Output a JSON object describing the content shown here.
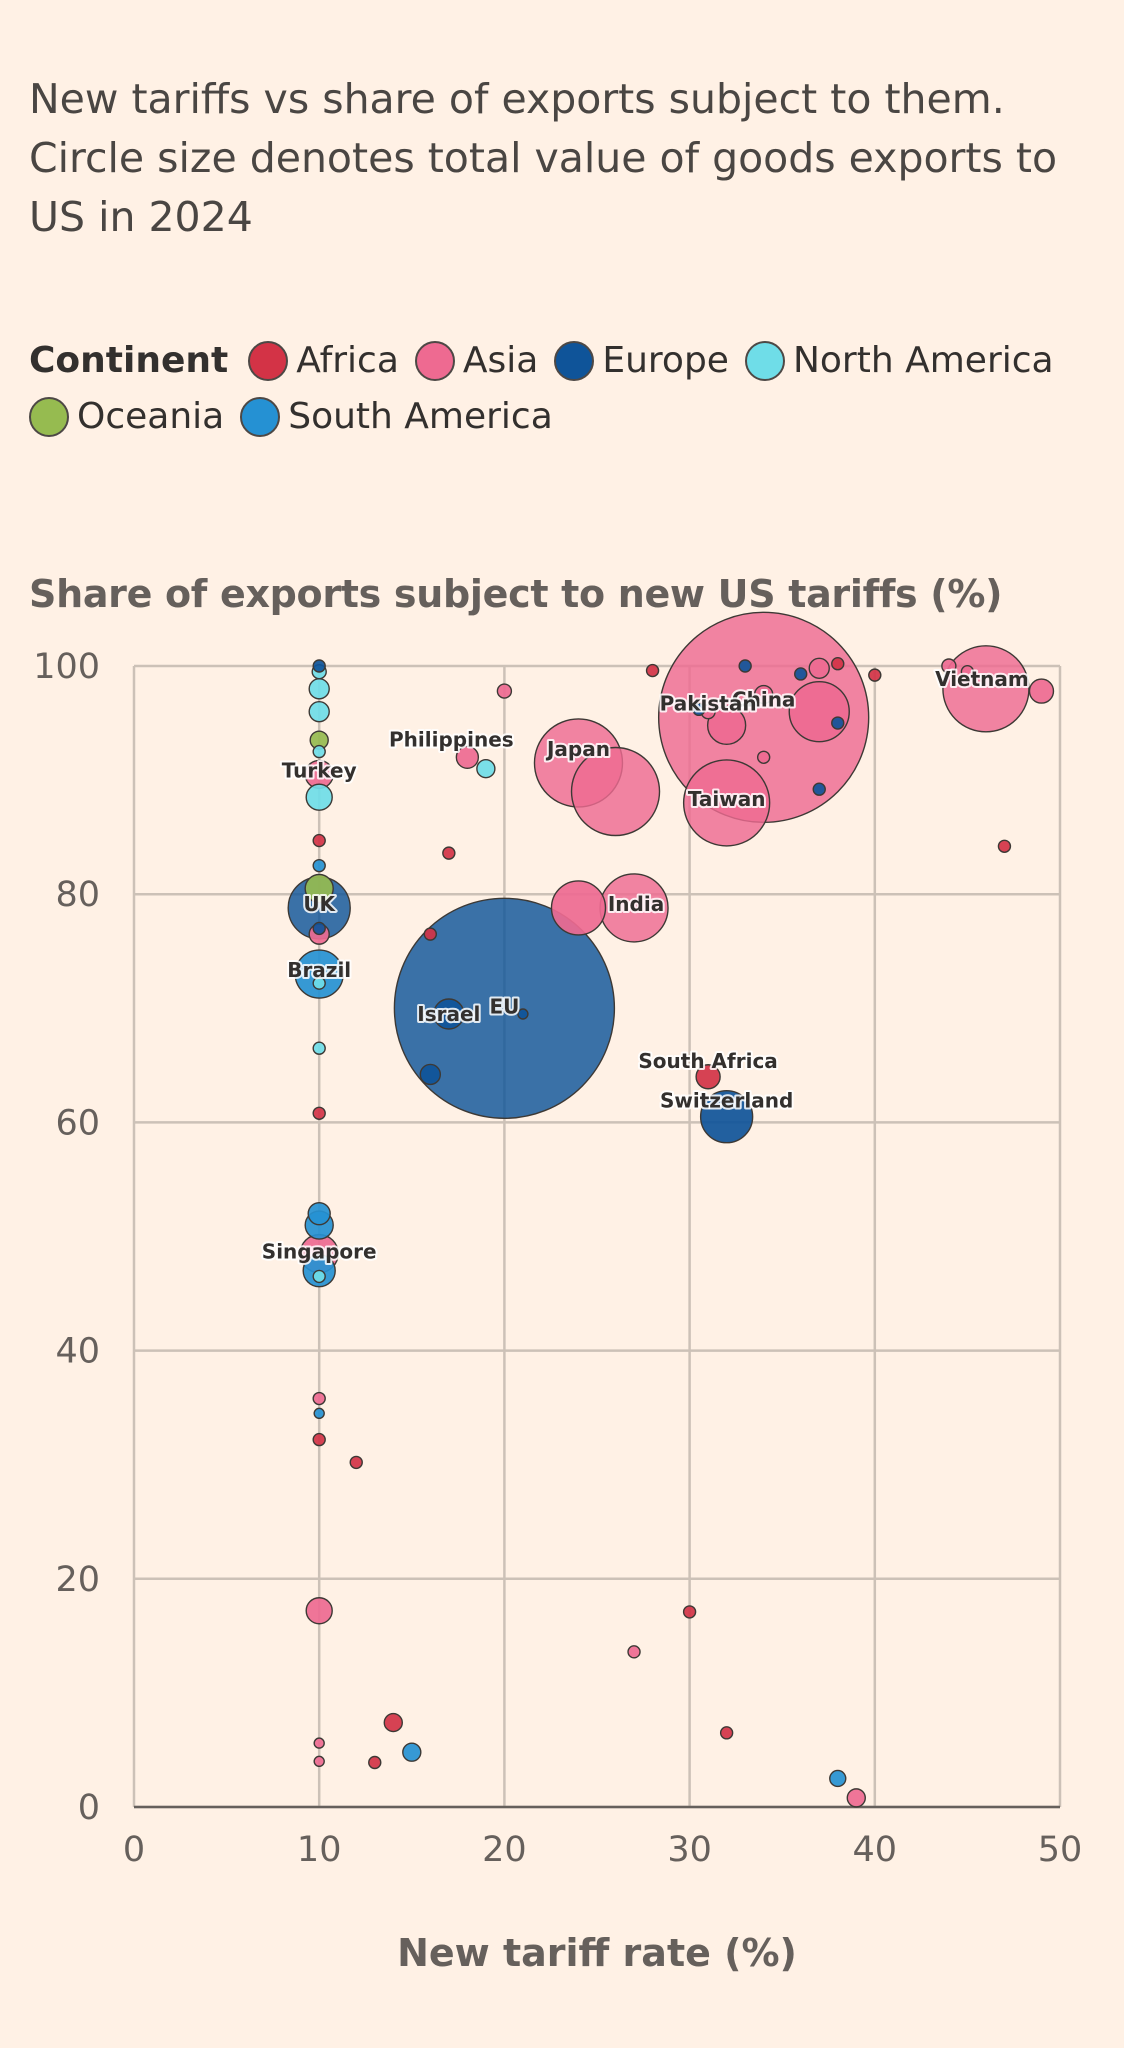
{
  "subtitle": "New tariffs vs share of exports subject to them. Circle size denotes total value of goods exports to US in 2024",
  "legend": {
    "title": "Continent",
    "items": [
      {
        "label": "Africa",
        "color": "#d33346"
      },
      {
        "label": "Asia",
        "color": "#ee6a91"
      },
      {
        "label": "Europe",
        "color": "#0f5499"
      },
      {
        "label": "North America",
        "color": "#6fdde8"
      },
      {
        "label": "Oceania",
        "color": "#96bb50"
      },
      {
        "label": "South America",
        "color": "#2591d3"
      }
    ]
  },
  "chart_data": {
    "type": "scatter",
    "xlabel": "New tariff rate (%)",
    "ylabel": "Share of exports subject to new US tariffs (%)",
    "xlim": [
      0,
      50
    ],
    "ylim": [
      0,
      100
    ],
    "xticks": [
      "0",
      "10",
      "20",
      "30",
      "40",
      "50"
    ],
    "yticks": [
      "0",
      "20",
      "40",
      "60",
      "80",
      "100"
    ],
    "grid": true,
    "legend_position": "top",
    "points": [
      {
        "x": 20,
        "y": 70,
        "r": 110,
        "continent": "Europe",
        "label": "EU"
      },
      {
        "x": 34,
        "y": 95.5,
        "r": 105,
        "continent": "Asia",
        "label": "China"
      },
      {
        "x": 24,
        "y": 91.5,
        "r": 44,
        "continent": "Asia",
        "label": "Japan"
      },
      {
        "x": 26,
        "y": 89,
        "r": 44,
        "continent": "Asia"
      },
      {
        "x": 32,
        "y": 88,
        "r": 43,
        "continent": "Asia",
        "label": "Taiwan"
      },
      {
        "x": 46,
        "y": 98,
        "r": 43,
        "continent": "Asia",
        "label": "Vietnam"
      },
      {
        "x": 27,
        "y": 78.8,
        "r": 34,
        "continent": "Asia",
        "label": "India"
      },
      {
        "x": 24,
        "y": 78.8,
        "r": 27,
        "continent": "Asia"
      },
      {
        "x": 37,
        "y": 96,
        "r": 30,
        "continent": "Asia"
      },
      {
        "x": 10,
        "y": 78.8,
        "r": 31,
        "continent": "Europe",
        "label": "UK"
      },
      {
        "x": 32,
        "y": 60.5,
        "r": 26,
        "continent": "Europe",
        "label": "Switzerland"
      },
      {
        "x": 10,
        "y": 73,
        "r": 24,
        "continent": "South America",
        "label": "Brazil"
      },
      {
        "x": 32,
        "y": 94.8,
        "r": 19,
        "continent": "Asia"
      },
      {
        "x": 10,
        "y": 48.5,
        "r": 19,
        "continent": "Asia",
        "label": "Singapore"
      },
      {
        "x": 10,
        "y": 47,
        "r": 16,
        "continent": "South America"
      },
      {
        "x": 10,
        "y": 51,
        "r": 14,
        "continent": "South America"
      },
      {
        "x": 10,
        "y": 52,
        "r": 11,
        "continent": "South America"
      },
      {
        "x": 17,
        "y": 69.5,
        "r": 15,
        "continent": "Europe",
        "label": "Israel"
      },
      {
        "x": 10,
        "y": 80.5,
        "r": 14,
        "continent": "Oceania"
      },
      {
        "x": 10,
        "y": 90.5,
        "r": 14,
        "continent": "Asia",
        "label": "Turkey"
      },
      {
        "x": 10,
        "y": 88.5,
        "r": 13,
        "continent": "North America"
      },
      {
        "x": 10,
        "y": 17.2,
        "r": 13,
        "continent": "Asia"
      },
      {
        "x": 31,
        "y": 64,
        "r": 12,
        "continent": "Africa",
        "label": "South Africa"
      },
      {
        "x": 37,
        "y": 99.8,
        "r": 10,
        "continent": "Asia"
      },
      {
        "x": 10,
        "y": 76.5,
        "r": 10,
        "continent": "Asia"
      },
      {
        "x": 16,
        "y": 64.2,
        "r": 10,
        "continent": "Europe"
      },
      {
        "x": 10,
        "y": 96,
        "r": 10,
        "continent": "North America"
      },
      {
        "x": 10,
        "y": 98,
        "r": 10,
        "continent": "North America"
      },
      {
        "x": 10,
        "y": 93.5,
        "r": 9,
        "continent": "Oceania"
      },
      {
        "x": 18,
        "y": 92,
        "r": 11,
        "continent": "Asia",
        "label": "Philippines"
      },
      {
        "x": 19,
        "y": 91,
        "r": 9,
        "continent": "North America"
      },
      {
        "x": 34,
        "y": 97.5,
        "r": 9,
        "continent": "Asia"
      },
      {
        "x": 49,
        "y": 97.8,
        "r": 12,
        "continent": "Asia"
      },
      {
        "x": 31,
        "y": 96,
        "r": 7,
        "continent": "Asia",
        "label": "Pakistan"
      },
      {
        "x": 14,
        "y": 7.4,
        "r": 9,
        "continent": "Africa"
      },
      {
        "x": 15,
        "y": 4.8,
        "r": 9,
        "continent": "South America"
      },
      {
        "x": 38,
        "y": 2.5,
        "r": 8,
        "continent": "South America"
      },
      {
        "x": 39,
        "y": 0.8,
        "r": 9,
        "continent": "Asia"
      },
      {
        "x": 10,
        "y": 99.5,
        "r": 7,
        "continent": "North America"
      },
      {
        "x": 10,
        "y": 100,
        "r": 6,
        "continent": "Europe"
      },
      {
        "x": 10,
        "y": 92.5,
        "r": 6,
        "continent": "North America"
      },
      {
        "x": 10,
        "y": 84.7,
        "r": 6,
        "continent": "Africa"
      },
      {
        "x": 10,
        "y": 82.5,
        "r": 6,
        "continent": "South America"
      },
      {
        "x": 10,
        "y": 77,
        "r": 6,
        "continent": "Europe"
      },
      {
        "x": 10,
        "y": 72.2,
        "r": 6,
        "continent": "North America"
      },
      {
        "x": 10,
        "y": 66.5,
        "r": 6,
        "continent": "North America"
      },
      {
        "x": 10,
        "y": 60.8,
        "r": 6,
        "continent": "Africa"
      },
      {
        "x": 10,
        "y": 46.5,
        "r": 6,
        "continent": "North America"
      },
      {
        "x": 10,
        "y": 35.8,
        "r": 6,
        "continent": "Asia"
      },
      {
        "x": 10,
        "y": 34.5,
        "r": 5,
        "continent": "South America"
      },
      {
        "x": 10,
        "y": 32.2,
        "r": 6,
        "continent": "Africa"
      },
      {
        "x": 10,
        "y": 5.6,
        "r": 5,
        "continent": "Asia"
      },
      {
        "x": 10,
        "y": 4,
        "r": 5,
        "continent": "Asia"
      },
      {
        "x": 12,
        "y": 30.2,
        "r": 6,
        "continent": "Africa"
      },
      {
        "x": 13,
        "y": 3.9,
        "r": 6,
        "continent": "Africa"
      },
      {
        "x": 16,
        "y": 76.5,
        "r": 6,
        "continent": "Africa"
      },
      {
        "x": 17,
        "y": 83.6,
        "r": 6,
        "continent": "Africa"
      },
      {
        "x": 20,
        "y": 97.8,
        "r": 7,
        "continent": "Asia"
      },
      {
        "x": 21,
        "y": 69.5,
        "r": 5,
        "continent": "Europe"
      },
      {
        "x": 27,
        "y": 13.6,
        "r": 6,
        "continent": "Asia"
      },
      {
        "x": 28,
        "y": 99.6,
        "r": 6,
        "continent": "Africa"
      },
      {
        "x": 30,
        "y": 17.1,
        "r": 6,
        "continent": "Africa"
      },
      {
        "x": 30.5,
        "y": 96.2,
        "r": 6,
        "continent": "Europe"
      },
      {
        "x": 32,
        "y": 6.5,
        "r": 6,
        "continent": "Africa"
      },
      {
        "x": 33,
        "y": 100,
        "r": 6,
        "continent": "Europe"
      },
      {
        "x": 34,
        "y": 92,
        "r": 6,
        "continent": "Asia"
      },
      {
        "x": 36,
        "y": 99.3,
        "r": 6,
        "continent": "Europe"
      },
      {
        "x": 37,
        "y": 89.2,
        "r": 6,
        "continent": "Europe"
      },
      {
        "x": 38,
        "y": 100.2,
        "r": 6,
        "continent": "Africa"
      },
      {
        "x": 38,
        "y": 95,
        "r": 6,
        "continent": "Europe"
      },
      {
        "x": 40,
        "y": 99.2,
        "r": 6,
        "continent": "Africa"
      },
      {
        "x": 44,
        "y": 100,
        "r": 7,
        "continent": "Asia"
      },
      {
        "x": 45,
        "y": 99.5,
        "r": 6,
        "continent": "Asia"
      },
      {
        "x": 47,
        "y": 84.2,
        "r": 6,
        "continent": "Africa"
      }
    ]
  }
}
